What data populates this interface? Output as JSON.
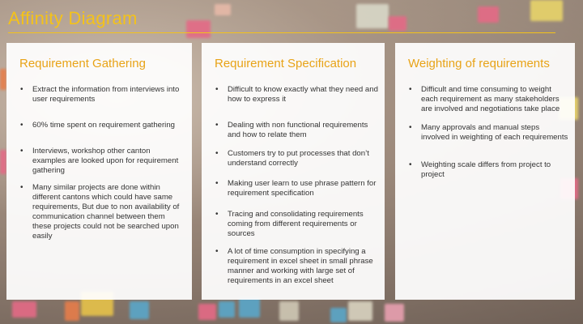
{
  "title": "Affinity Diagram",
  "columns": [
    {
      "heading": "Requirement Gathering",
      "items": [
        "Extract the information from interviews into user requirements",
        "60% time spent on requirement gathering",
        "Interviews, workshop other canton examples are looked upon for requirement gathering",
        "Many similar projects are done within different cantons which could have same requirements, But due to non availability of communication channel between them these projects could not be searched upon easily"
      ]
    },
    {
      "heading": "Requirement Specification",
      "items": [
        "Difficult to know exactly what they need and how to express it",
        "Dealing with non functional requirements and how to relate them",
        "Customers try to put processes that don’t  understand correctly",
        "Making user learn to use phrase pattern for requirement specification",
        "Tracing and consolidating requirements coming from different requirements or sources",
        "A lot of time consumption in specifying a requirement  in excel sheet in small phrase manner and working with large set of requirements in an excel sheet"
      ]
    },
    {
      "heading": "Weighting of requirements",
      "items": [
        "Difficult and time consuming to weight each requirement as many stakeholders are  involved and negotiations take place",
        "Many approvals and manual steps involved in  weighting of each requirements",
        "Weighting scale differs from project to project"
      ]
    }
  ],
  "colors": {
    "title": "#f4c21a",
    "heading": "#e8a317",
    "panel": "#ffffff",
    "text": "#333333"
  }
}
